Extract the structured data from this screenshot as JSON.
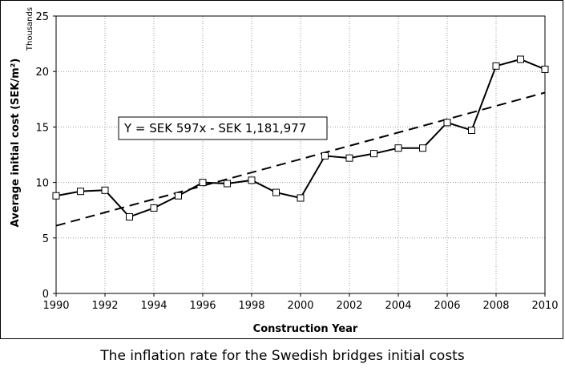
{
  "caption": "The inflation rate for the Swedish bridges initial costs",
  "chart_data": {
    "type": "line",
    "xlabel": "Construction Year",
    "ylabel": "Average initial cost (SEK/m²)",
    "y_unit_label": "Thousands",
    "xlim": [
      1990,
      2010
    ],
    "ylim": [
      0,
      25
    ],
    "x_ticks": [
      "1990",
      "1992",
      "1994",
      "1996",
      "1998",
      "2000",
      "2002",
      "2004",
      "2006",
      "2008",
      "2010"
    ],
    "y_ticks": [
      "0",
      "5",
      "10",
      "15",
      "20",
      "25"
    ],
    "grid": true,
    "series": [
      {
        "x": [
          1990,
          1991,
          1992,
          1993,
          1994,
          1995,
          1996,
          1997,
          1998,
          1999,
          2000,
          2001,
          2002,
          2003,
          2004,
          2005,
          2006,
          2007,
          2008,
          2009,
          2010
        ],
        "values": [
          8.8,
          9.2,
          9.3,
          6.9,
          7.7,
          8.8,
          10.0,
          9.9,
          10.2,
          9.1,
          8.6,
          12.4,
          12.2,
          12.6,
          13.1,
          13.1,
          15.4,
          14.7,
          20.5,
          21.1,
          20.2
        ],
        "marker": "square",
        "color": "#000000"
      }
    ],
    "trendline": {
      "equation": "Y = SEK 597x - SEK 1,181,977",
      "x": [
        1990,
        2010
      ],
      "values": [
        6.1,
        18.1
      ],
      "style": "dashed",
      "color": "#000000"
    }
  }
}
